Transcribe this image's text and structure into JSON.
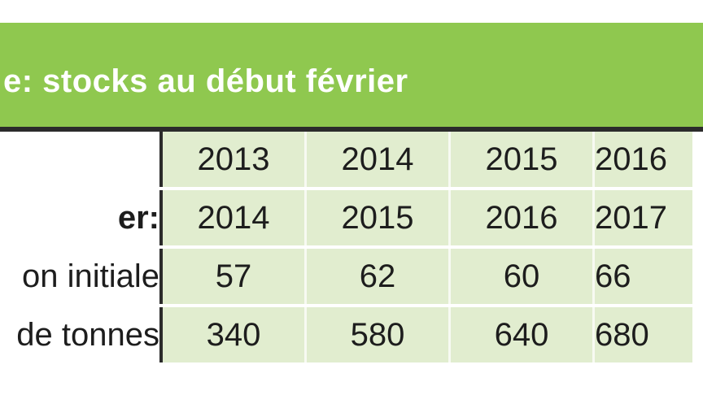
{
  "title": "e: stocks au début février",
  "rows": [
    {
      "label": "",
      "values": [
        "2013",
        "2014",
        "2015",
        "2016"
      ]
    },
    {
      "label": "er:",
      "values": [
        "2014",
        "2015",
        "2016",
        "2017"
      ]
    },
    {
      "label": "on initiale",
      "values": [
        "57",
        "62",
        "60",
        "66"
      ]
    },
    {
      "label": "de tonnes",
      "values": [
        "340",
        "580",
        "640",
        "680"
      ]
    }
  ],
  "colors": {
    "header_green": "#8fc84f",
    "cell_green": "#e1edcf",
    "rule_dark": "#2b2b2b"
  },
  "chart_data": {
    "type": "table",
    "title": "e: stocks au début février",
    "columns": [
      "2013/2014",
      "2014/2015",
      "2015/2016",
      "2016/2017"
    ],
    "row_headers": [
      "",
      "er:",
      "on initiale",
      "de tonnes"
    ],
    "cells": [
      [
        "2013",
        "2014",
        "2015",
        "2016"
      ],
      [
        "2014",
        "2015",
        "2016",
        "2017"
      ],
      [
        57,
        62,
        60,
        66
      ],
      [
        340,
        580,
        640,
        680
      ]
    ]
  }
}
